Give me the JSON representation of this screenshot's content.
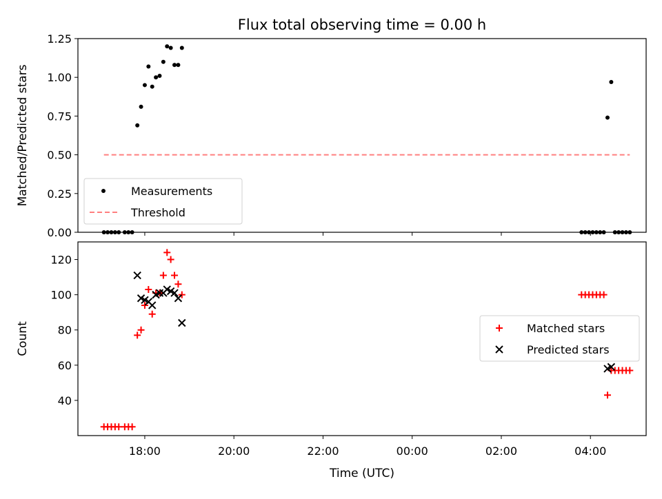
{
  "figure": {
    "title": "Flux total observing time = 0.00 h"
  },
  "x_axis": {
    "label": "Time (UTC)",
    "ticks": [
      "18:00",
      "20:00",
      "22:00",
      "00:00",
      "02:00",
      "04:00"
    ]
  },
  "chart_data": [
    {
      "type": "scatter",
      "ylabel": "Matched/Predicted stars",
      "ylim": [
        0,
        1.25
      ],
      "yticks": [
        "0.00",
        "0.25",
        "0.50",
        "0.75",
        "1.00",
        "1.25"
      ],
      "legend_position": "bottom-left",
      "series": [
        {
          "name": "Measurements",
          "color": "#000000",
          "marker": "dot",
          "points": [
            [
              "17:05",
              0
            ],
            [
              "17:10",
              0
            ],
            [
              "17:15",
              0
            ],
            [
              "17:20",
              0
            ],
            [
              "17:25",
              0
            ],
            [
              "17:33",
              0
            ],
            [
              "17:38",
              0
            ],
            [
              "17:43",
              0
            ],
            [
              "17:50",
              0.69
            ],
            [
              "17:55",
              0.81
            ],
            [
              "18:00",
              0.95
            ],
            [
              "18:05",
              1.07
            ],
            [
              "18:10",
              0.94
            ],
            [
              "18:15",
              1.0
            ],
            [
              "18:20",
              1.01
            ],
            [
              "18:25",
              1.1
            ],
            [
              "18:30",
              1.2
            ],
            [
              "18:35",
              1.19
            ],
            [
              "18:40",
              1.08
            ],
            [
              "18:45",
              1.08
            ],
            [
              "18:50",
              1.19
            ],
            [
              "03:48",
              0
            ],
            [
              "03:53",
              0
            ],
            [
              "03:58",
              0
            ],
            [
              "04:03",
              0
            ],
            [
              "04:08",
              0
            ],
            [
              "04:13",
              0
            ],
            [
              "04:18",
              0
            ],
            [
              "04:23",
              0.74
            ],
            [
              "04:28",
              0.97
            ],
            [
              "04:33",
              0
            ],
            [
              "04:38",
              0
            ],
            [
              "04:43",
              0
            ],
            [
              "04:48",
              0
            ],
            [
              "04:53",
              0
            ]
          ]
        },
        {
          "name": "Threshold",
          "color": "#ff7f7f",
          "marker": "dashed-line",
          "points": [
            [
              "17:05",
              0.5
            ],
            [
              "04:53",
              0.5
            ]
          ]
        }
      ]
    },
    {
      "type": "scatter",
      "ylabel": "Count",
      "ylim": [
        20,
        130
      ],
      "yticks": [
        "40",
        "60",
        "80",
        "100",
        "120"
      ],
      "legend_position": "center-right",
      "series": [
        {
          "name": "Matched stars",
          "color": "#ff0000",
          "marker": "plus",
          "points": [
            [
              "17:05",
              25
            ],
            [
              "17:10",
              25
            ],
            [
              "17:15",
              25
            ],
            [
              "17:20",
              25
            ],
            [
              "17:25",
              25
            ],
            [
              "17:33",
              25
            ],
            [
              "17:38",
              25
            ],
            [
              "17:43",
              25
            ],
            [
              "17:50",
              77
            ],
            [
              "17:55",
              80
            ],
            [
              "18:00",
              94
            ],
            [
              "18:05",
              103
            ],
            [
              "18:10",
              89
            ],
            [
              "18:15",
              101
            ],
            [
              "18:20",
              101
            ],
            [
              "18:25",
              111
            ],
            [
              "18:30",
              124
            ],
            [
              "18:35",
              120
            ],
            [
              "18:40",
              111
            ],
            [
              "18:45",
              106
            ],
            [
              "18:50",
              100
            ],
            [
              "03:48",
              100
            ],
            [
              "03:53",
              100
            ],
            [
              "03:58",
              100
            ],
            [
              "04:03",
              100
            ],
            [
              "04:08",
              100
            ],
            [
              "04:13",
              100
            ],
            [
              "04:18",
              100
            ],
            [
              "04:23",
              43
            ],
            [
              "04:28",
              57
            ],
            [
              "04:33",
              57
            ],
            [
              "04:38",
              57
            ],
            [
              "04:43",
              57
            ],
            [
              "04:48",
              57
            ],
            [
              "04:53",
              57
            ]
          ]
        },
        {
          "name": "Predicted stars",
          "color": "#000000",
          "marker": "x",
          "points": [
            [
              "17:50",
              111
            ],
            [
              "17:55",
              98
            ],
            [
              "18:00",
              97
            ],
            [
              "18:05",
              96
            ],
            [
              "18:10",
              94
            ],
            [
              "18:15",
              100
            ],
            [
              "18:20",
              101
            ],
            [
              "18:25",
              101
            ],
            [
              "18:30",
              103
            ],
            [
              "18:35",
              102
            ],
            [
              "18:40",
              101
            ],
            [
              "18:45",
              98
            ],
            [
              "18:50",
              84
            ],
            [
              "04:23",
              58
            ],
            [
              "04:28",
              59
            ]
          ]
        }
      ]
    }
  ]
}
